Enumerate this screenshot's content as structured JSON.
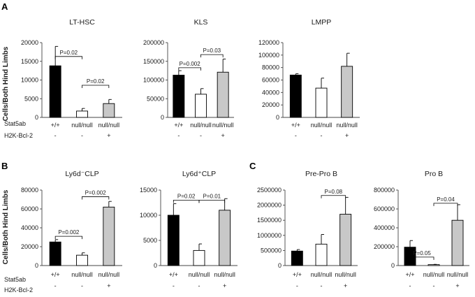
{
  "panel_letters": {
    "A": "A",
    "B": "B",
    "C": "C"
  },
  "ylabel": "Cells/Both Hind Limbs",
  "row_labels": {
    "stat5ab": "Stat5ab",
    "bcl2": "H2K-Bcl-2"
  },
  "colors": {
    "black": "#000000",
    "white": "#ffffff",
    "gray": "#c8c8c8",
    "axis": "#444444",
    "text": "#1a1a1a"
  },
  "chart_data": [
    {
      "id": "lt-hsc",
      "type": "bar",
      "title": "LT-HSC",
      "ylim": [
        0,
        20000
      ],
      "yticks": [
        0,
        5000,
        10000,
        15000,
        20000
      ],
      "ytick_labels": [
        "0",
        "5000",
        "10000",
        "15000",
        "20000"
      ],
      "categories": [
        "+/+",
        "null/null",
        "null/null"
      ],
      "bcl2": [
        "-",
        "-",
        "+"
      ],
      "values": [
        13800,
        1700,
        3700
      ],
      "errors": [
        5200,
        700,
        1100
      ],
      "colors": [
        "black",
        "white",
        "gray"
      ],
      "pvalues": [
        {
          "from": 0,
          "to": 1,
          "label": "P=0.02",
          "y": 16300
        },
        {
          "from": 1,
          "to": 2,
          "label": "P=0.02",
          "y": 8600
        }
      ]
    },
    {
      "id": "kls",
      "type": "bar",
      "title": "KLS",
      "ylim": [
        0,
        200000
      ],
      "yticks": [
        0,
        50000,
        100000,
        150000,
        200000
      ],
      "ytick_labels": [
        "0",
        "50000",
        "100000",
        "150000",
        "200000"
      ],
      "categories": [
        "+/+",
        "null/null",
        "null/null"
      ],
      "bcl2": [
        "-",
        "-",
        "+"
      ],
      "values": [
        113000,
        62000,
        121000
      ],
      "errors": [
        12000,
        15000,
        35000
      ],
      "colors": [
        "black",
        "white",
        "gray"
      ],
      "pvalues": [
        {
          "from": 0,
          "to": 1,
          "label": "P=0.002",
          "y": 133000
        },
        {
          "from": 1,
          "to": 2,
          "label": "P=0.03",
          "y": 168000
        }
      ]
    },
    {
      "id": "lmpp",
      "type": "bar",
      "title": "LMPP",
      "ylim": [
        0,
        120000
      ],
      "yticks": [
        0,
        20000,
        40000,
        60000,
        80000,
        100000,
        120000
      ],
      "ytick_labels": [
        "0",
        "20000",
        "40000",
        "60000",
        "80000",
        "100000",
        "120000"
      ],
      "categories": [
        "+/+",
        "null/null",
        "null/null"
      ],
      "bcl2": [
        "-",
        "-",
        "+"
      ],
      "values": [
        68000,
        47000,
        82000
      ],
      "errors": [
        2000,
        16000,
        21000
      ],
      "colors": [
        "black",
        "white",
        "gray"
      ],
      "pvalues": []
    },
    {
      "id": "ly6d-neg-clp",
      "type": "bar",
      "title": "Ly6d⁻CLP",
      "ylim": [
        0,
        80000
      ],
      "yticks": [
        0,
        20000,
        40000,
        60000,
        80000
      ],
      "ytick_labels": [
        "0",
        "20000",
        "40000",
        "60000",
        "80000"
      ],
      "categories": [
        "+/+",
        "null/null",
        "null/null"
      ],
      "bcl2": [
        "-",
        "-",
        "+"
      ],
      "values": [
        25000,
        11000,
        62000
      ],
      "errors": [
        2500,
        2500,
        6000
      ],
      "colors": [
        "black",
        "white",
        "gray"
      ],
      "pvalues": [
        {
          "from": 0,
          "to": 1,
          "label": "P=0.002",
          "y": 31000
        },
        {
          "from": 1,
          "to": 2,
          "label": "P=0.002",
          "y": 73000
        }
      ]
    },
    {
      "id": "ly6d-pos-clp",
      "type": "bar",
      "title": "Ly6d⁺CLP",
      "ylim": [
        0,
        15000
      ],
      "yticks": [
        0,
        5000,
        10000,
        15000
      ],
      "ytick_labels": [
        "0",
        "5000",
        "10000",
        "15000"
      ],
      "categories": [
        "+/+",
        "null/null",
        "null/null"
      ],
      "bcl2": [
        "-",
        "-",
        "+"
      ],
      "values": [
        10000,
        3000,
        11000
      ],
      "errors": [
        2300,
        1300,
        2300
      ],
      "colors": [
        "black",
        "white",
        "gray"
      ],
      "pvalues": [
        {
          "from": 0,
          "to": 1,
          "label": "P=0.02",
          "y": 13000
        },
        {
          "from": 1,
          "to": 2,
          "label": "P=0.01",
          "y": 13000
        }
      ]
    },
    {
      "id": "pre-pro-b",
      "type": "bar",
      "title": "Pre-Pro B",
      "ylim": [
        0,
        2500000
      ],
      "yticks": [
        0,
        500000,
        1000000,
        1500000,
        2000000,
        2500000
      ],
      "ytick_labels": [
        "0",
        "500000",
        "1000000",
        "1500000",
        "2000000",
        "2500000"
      ],
      "categories": [
        "+/+",
        "null/null",
        "null/null"
      ],
      "bcl2": [
        "-",
        "-",
        "+"
      ],
      "values": [
        480000,
        710000,
        1700000
      ],
      "errors": [
        50000,
        320000,
        560000
      ],
      "colors": [
        "black",
        "white",
        "gray"
      ],
      "pvalues": [
        {
          "from": 1,
          "to": 2,
          "label": "P=0.08",
          "y": 2320000
        }
      ]
    },
    {
      "id": "pro-b",
      "type": "bar",
      "title": "Pro B",
      "ylim": [
        0,
        800000
      ],
      "yticks": [
        0,
        200000,
        400000,
        600000,
        800000
      ],
      "ytick_labels": [
        "0",
        "200000",
        "400000",
        "600000",
        "800000"
      ],
      "categories": [
        "+/+",
        "null/null",
        "null/null"
      ],
      "bcl2": [
        "-",
        "-",
        "+"
      ],
      "values": [
        195000,
        10000,
        480000
      ],
      "errors": [
        70000,
        3000,
        165000
      ],
      "colors": [
        "black",
        "white",
        "gray"
      ],
      "pvalues": [
        {
          "from": 0,
          "to": 1,
          "label": "P=0.05",
          "y": 90000
        },
        {
          "from": 1,
          "to": 2,
          "label": "P=0.04",
          "y": 660000
        }
      ]
    }
  ]
}
